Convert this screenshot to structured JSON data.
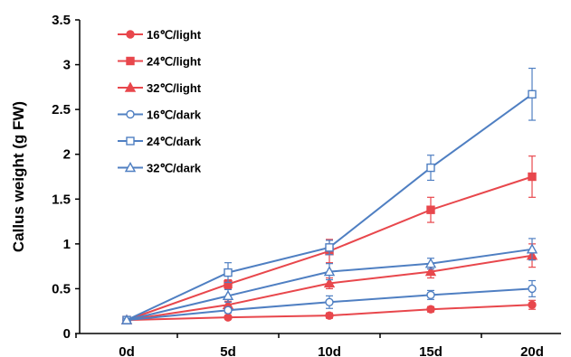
{
  "chart_data": {
    "type": "line",
    "title": "",
    "xlabel": "",
    "ylabel": "Callus  weight  (g FW)",
    "categories": [
      "0d",
      "5d",
      "10d",
      "15d",
      "20d"
    ],
    "ylim": [
      0,
      3.5
    ],
    "yticks": [
      "0",
      "0.5",
      "1",
      "1.5",
      "2",
      "2.5",
      "3",
      "3.5"
    ],
    "grid": false,
    "legend_position": "top-left",
    "series": [
      {
        "name": "16℃/light",
        "color": "#e8474c",
        "marker": "circle",
        "filled": true,
        "values": [
          0.15,
          0.18,
          0.2,
          0.27,
          0.32
        ],
        "errors": [
          0.02,
          0.02,
          0.03,
          0.03,
          0.05
        ]
      },
      {
        "name": "24℃/light",
        "color": "#e8474c",
        "marker": "square",
        "filled": true,
        "values": [
          0.15,
          0.55,
          0.92,
          1.38,
          1.75
        ],
        "errors": [
          0.02,
          0.05,
          0.13,
          0.14,
          0.23
        ]
      },
      {
        "name": "32℃/light",
        "color": "#e8474c",
        "marker": "triangle",
        "filled": true,
        "values": [
          0.15,
          0.32,
          0.56,
          0.69,
          0.87
        ],
        "errors": [
          0.02,
          0.04,
          0.06,
          0.07,
          0.13
        ]
      },
      {
        "name": "16℃/dark",
        "color": "#4f7fc2",
        "marker": "circle",
        "filled": false,
        "values": [
          0.15,
          0.26,
          0.35,
          0.43,
          0.5
        ],
        "errors": [
          0.02,
          0.03,
          0.07,
          0.05,
          0.09
        ]
      },
      {
        "name": "24℃/dark",
        "color": "#4f7fc2",
        "marker": "square",
        "filled": false,
        "values": [
          0.15,
          0.68,
          0.96,
          1.85,
          2.67
        ],
        "errors": [
          0.02,
          0.11,
          0.08,
          0.14,
          0.29
        ]
      },
      {
        "name": "32℃/dark",
        "color": "#4f7fc2",
        "marker": "triangle",
        "filled": false,
        "values": [
          0.15,
          0.42,
          0.69,
          0.78,
          0.94
        ],
        "errors": [
          0.02,
          0.07,
          0.09,
          0.06,
          0.12
        ]
      }
    ]
  }
}
